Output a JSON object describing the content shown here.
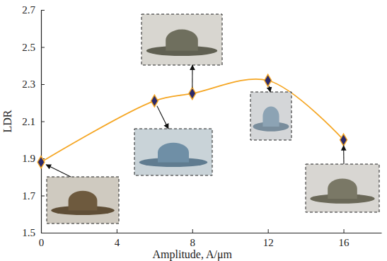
{
  "chart_data": {
    "type": "line",
    "x": [
      0,
      6,
      8,
      12,
      16
    ],
    "values": [
      1.88,
      2.21,
      2.25,
      2.32,
      2
    ],
    "x_label": "Amplitude, A/μm",
    "y_label": "LDR",
    "xlim": [
      0,
      18
    ],
    "ylim": [
      1.5,
      2.7
    ],
    "xticks": [
      0,
      4,
      8,
      12,
      16
    ],
    "yticks": [
      1.5,
      1.7,
      1.9,
      2.1,
      2.3,
      2.5,
      2.7
    ],
    "color": "#f5a623",
    "marker": "diamond",
    "line_style": "solid",
    "grid": false
  }
}
